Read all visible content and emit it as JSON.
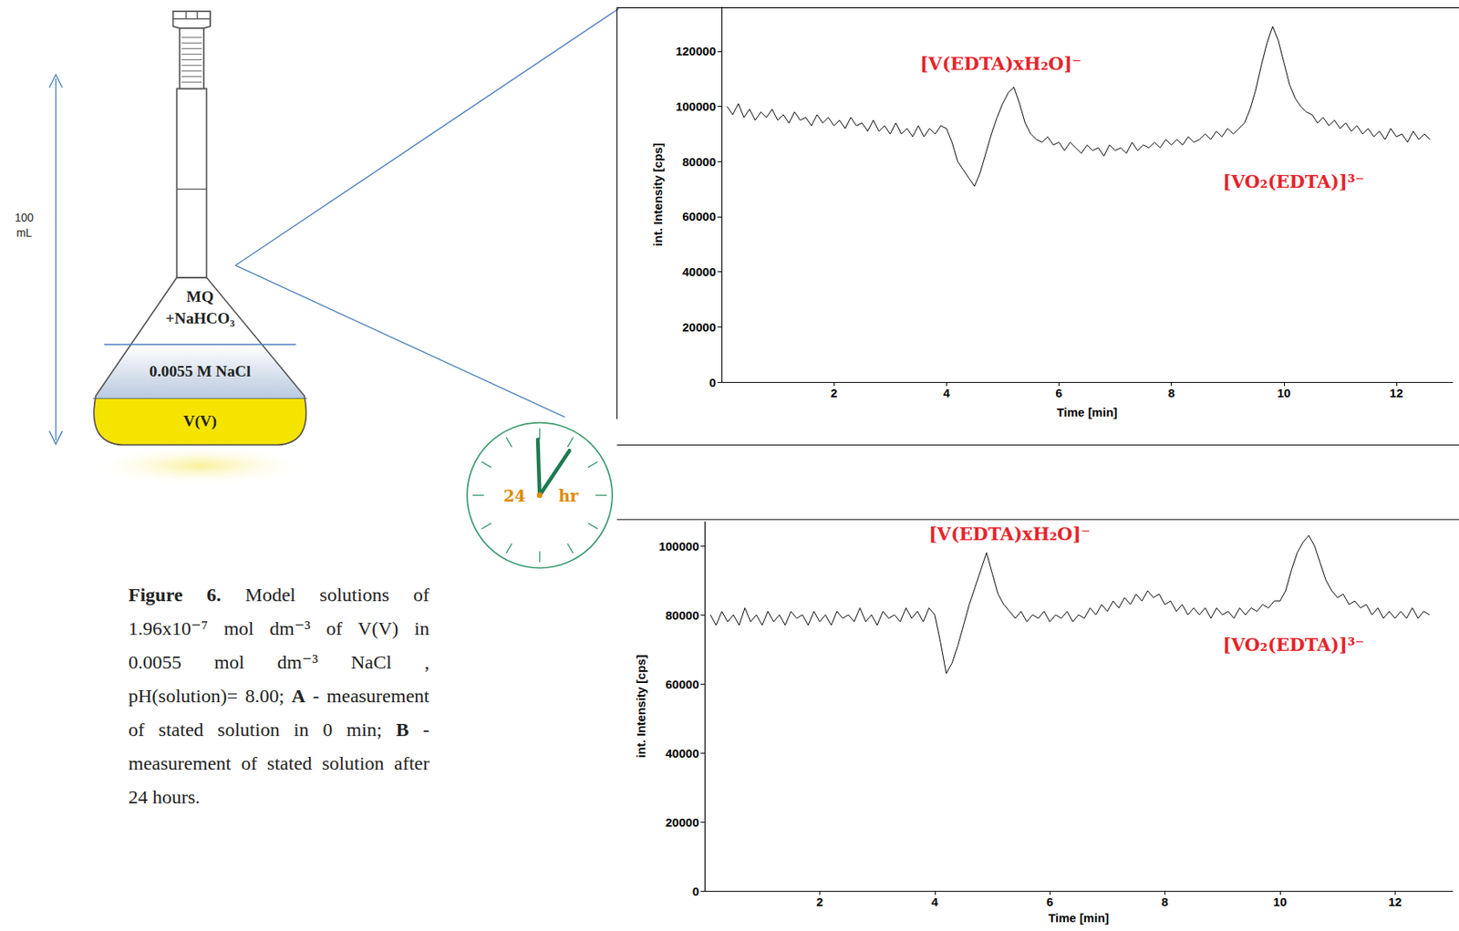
{
  "chart_data": [
    {
      "type": "line",
      "xlabel": "Time [min]",
      "ylabel": "int. Intensity [cps]",
      "annotations": [
        "[V(EDTA)xH₂O]⁻",
        "[VO₂(EDTA)]³⁻"
      ],
      "color": "#000000",
      "grid": false,
      "xlim": [
        0,
        13
      ],
      "xticks": [
        2,
        4,
        6,
        8,
        10,
        12
      ],
      "ylim": [
        0,
        136000
      ],
      "yticks": [
        0,
        20000,
        40000,
        60000,
        80000,
        100000,
        120000
      ],
      "x": [
        0.1,
        0.2,
        0.3,
        0.4,
        0.5,
        0.6,
        0.7,
        0.8,
        0.9,
        1.0,
        1.1,
        1.2,
        1.3,
        1.4,
        1.5,
        1.6,
        1.7,
        1.8,
        1.9,
        2.0,
        2.1,
        2.2,
        2.3,
        2.4,
        2.5,
        2.6,
        2.7,
        2.8,
        2.9,
        3.0,
        3.1,
        3.2,
        3.3,
        3.4,
        3.5,
        3.6,
        3.7,
        3.8,
        3.9,
        4.0,
        4.1,
        4.2,
        4.3,
        4.4,
        4.5,
        4.6,
        4.7,
        4.8,
        4.9,
        5.0,
        5.1,
        5.2,
        5.3,
        5.4,
        5.5,
        5.6,
        5.7,
        5.8,
        5.9,
        6.0,
        6.1,
        6.2,
        6.3,
        6.4,
        6.5,
        6.6,
        6.7,
        6.8,
        6.9,
        7.0,
        7.1,
        7.2,
        7.3,
        7.4,
        7.5,
        7.6,
        7.7,
        7.8,
        7.9,
        8.0,
        8.1,
        8.2,
        8.3,
        8.4,
        8.5,
        8.6,
        8.7,
        8.8,
        8.9,
        9.0,
        9.1,
        9.2,
        9.3,
        9.4,
        9.5,
        9.6,
        9.7,
        9.8,
        9.9,
        10.0,
        10.1,
        10.2,
        10.3,
        10.4,
        10.5,
        10.6,
        10.7,
        10.8,
        10.9,
        11.0,
        11.1,
        11.2,
        11.3,
        11.4,
        11.5,
        11.6,
        11.7,
        11.8,
        11.9,
        12.0,
        12.1,
        12.2,
        12.3,
        12.4,
        12.5,
        12.6
      ],
      "values": [
        100000,
        97000,
        101000,
        96000,
        99000,
        95000,
        98000,
        96000,
        99000,
        95000,
        97000,
        94000,
        98000,
        95000,
        96000,
        93000,
        97000,
        94000,
        96000,
        93000,
        95000,
        92000,
        96000,
        93000,
        94000,
        91000,
        95000,
        91000,
        93000,
        90000,
        94000,
        90000,
        92000,
        89000,
        93000,
        89000,
        92000,
        90000,
        93000,
        92000,
        87000,
        80000,
        77000,
        74000,
        71000,
        76000,
        83000,
        90000,
        96000,
        101000,
        105000,
        107000,
        101000,
        94000,
        90000,
        88000,
        87000,
        89000,
        86000,
        87000,
        84000,
        87000,
        85000,
        83000,
        86000,
        84000,
        85000,
        82000,
        86000,
        84000,
        85000,
        83000,
        87000,
        84000,
        86000,
        85000,
        87000,
        85000,
        88000,
        86000,
        88000,
        86000,
        89000,
        87000,
        88000,
        90000,
        88000,
        91000,
        89000,
        92000,
        90000,
        92000,
        94000,
        99000,
        106000,
        115000,
        123000,
        129000,
        124000,
        116000,
        108000,
        103000,
        100000,
        98000,
        97000,
        94000,
        96000,
        93000,
        95000,
        92000,
        94000,
        91000,
        93000,
        90000,
        92000,
        89000,
        91000,
        88000,
        92000,
        89000,
        90000,
        87000,
        91000,
        88000,
        90000,
        88000
      ]
    },
    {
      "type": "line",
      "xlabel": "Time [min]",
      "ylabel": "int. Intensity [cps]",
      "annotations": [
        "[V(EDTA)xH₂O]⁻",
        "[VO₂(EDTA)]³⁻"
      ],
      "color": "#000000",
      "grid": false,
      "xlim": [
        0,
        13
      ],
      "xticks": [
        2,
        4,
        6,
        8,
        10,
        12
      ],
      "ylim": [
        0,
        107000
      ],
      "yticks": [
        0,
        20000,
        40000,
        60000,
        80000,
        100000
      ],
      "x": [
        0.1,
        0.2,
        0.3,
        0.4,
        0.5,
        0.6,
        0.7,
        0.8,
        0.9,
        1.0,
        1.1,
        1.2,
        1.3,
        1.4,
        1.5,
        1.6,
        1.7,
        1.8,
        1.9,
        2.0,
        2.1,
        2.2,
        2.3,
        2.4,
        2.5,
        2.6,
        2.7,
        2.8,
        2.9,
        3.0,
        3.1,
        3.2,
        3.3,
        3.4,
        3.5,
        3.6,
        3.7,
        3.8,
        3.9,
        4.0,
        4.1,
        4.2,
        4.3,
        4.4,
        4.5,
        4.6,
        4.7,
        4.8,
        4.9,
        5.0,
        5.1,
        5.2,
        5.3,
        5.4,
        5.5,
        5.6,
        5.7,
        5.8,
        5.9,
        6.0,
        6.1,
        6.2,
        6.3,
        6.4,
        6.5,
        6.6,
        6.7,
        6.8,
        6.9,
        7.0,
        7.1,
        7.2,
        7.3,
        7.4,
        7.5,
        7.6,
        7.7,
        7.8,
        7.9,
        8.0,
        8.1,
        8.2,
        8.3,
        8.4,
        8.5,
        8.6,
        8.7,
        8.8,
        8.9,
        9.0,
        9.1,
        9.2,
        9.3,
        9.4,
        9.5,
        9.6,
        9.7,
        9.8,
        9.9,
        10.0,
        10.1,
        10.2,
        10.3,
        10.4,
        10.5,
        10.6,
        10.7,
        10.8,
        10.9,
        11.0,
        11.1,
        11.2,
        11.3,
        11.4,
        11.5,
        11.6,
        11.7,
        11.8,
        11.9,
        12.0,
        12.1,
        12.2,
        12.3,
        12.4,
        12.5,
        12.6
      ],
      "values": [
        80000,
        77000,
        81000,
        78000,
        80000,
        77000,
        82000,
        78000,
        80000,
        77000,
        81000,
        78000,
        80000,
        77000,
        81000,
        79000,
        80000,
        77000,
        81000,
        78000,
        80000,
        77000,
        81000,
        79000,
        80000,
        78000,
        82000,
        78000,
        80000,
        77000,
        81000,
        79000,
        80000,
        78000,
        82000,
        79000,
        81000,
        78000,
        82000,
        80000,
        72000,
        63000,
        66000,
        71000,
        77000,
        83000,
        88000,
        93000,
        98000,
        92000,
        86000,
        83000,
        81000,
        79000,
        81000,
        78000,
        80000,
        79000,
        81000,
        78000,
        80000,
        79000,
        81000,
        78000,
        80000,
        79000,
        82000,
        80000,
        83000,
        81000,
        84000,
        82000,
        85000,
        83000,
        86000,
        84000,
        87000,
        85000,
        86000,
        83000,
        84000,
        81000,
        83000,
        80000,
        82000,
        80000,
        82000,
        79000,
        82000,
        80000,
        81000,
        79000,
        82000,
        80000,
        82000,
        81000,
        83000,
        82000,
        84000,
        84000,
        87000,
        93000,
        98000,
        101000,
        103000,
        100000,
        95000,
        90000,
        87000,
        85000,
        86000,
        83000,
        84000,
        82000,
        83000,
        80000,
        82000,
        79000,
        81000,
        79000,
        81000,
        79000,
        82000,
        79000,
        81000,
        80000
      ]
    }
  ],
  "diagram": {
    "flask": {
      "volume_label": "100 mL",
      "layers": {
        "top": [
          "MQ",
          "+NaHCO₃"
        ],
        "middle": "0.0055 M NaCl",
        "bottom": "V(V)"
      }
    },
    "clock": {
      "number": "24",
      "unit": "hr"
    },
    "caption": [
      {
        "text": "Figure 6.",
        "bold": true
      },
      {
        "text": " Model solutions of 1.96x10⁻⁷ mol dm⁻³ of V(V) in 0.0055 mol dm⁻³ NaCl , pH(solution)= 8.00; ",
        "bold": false
      },
      {
        "text": "A",
        "bold": true
      },
      {
        "text": " - measurement of stated solution in 0 min; ",
        "bold": false
      },
      {
        "text": "B",
        "bold": true
      },
      {
        "text": " - measurement of stated solution after 24 hours.",
        "bold": false
      }
    ]
  }
}
